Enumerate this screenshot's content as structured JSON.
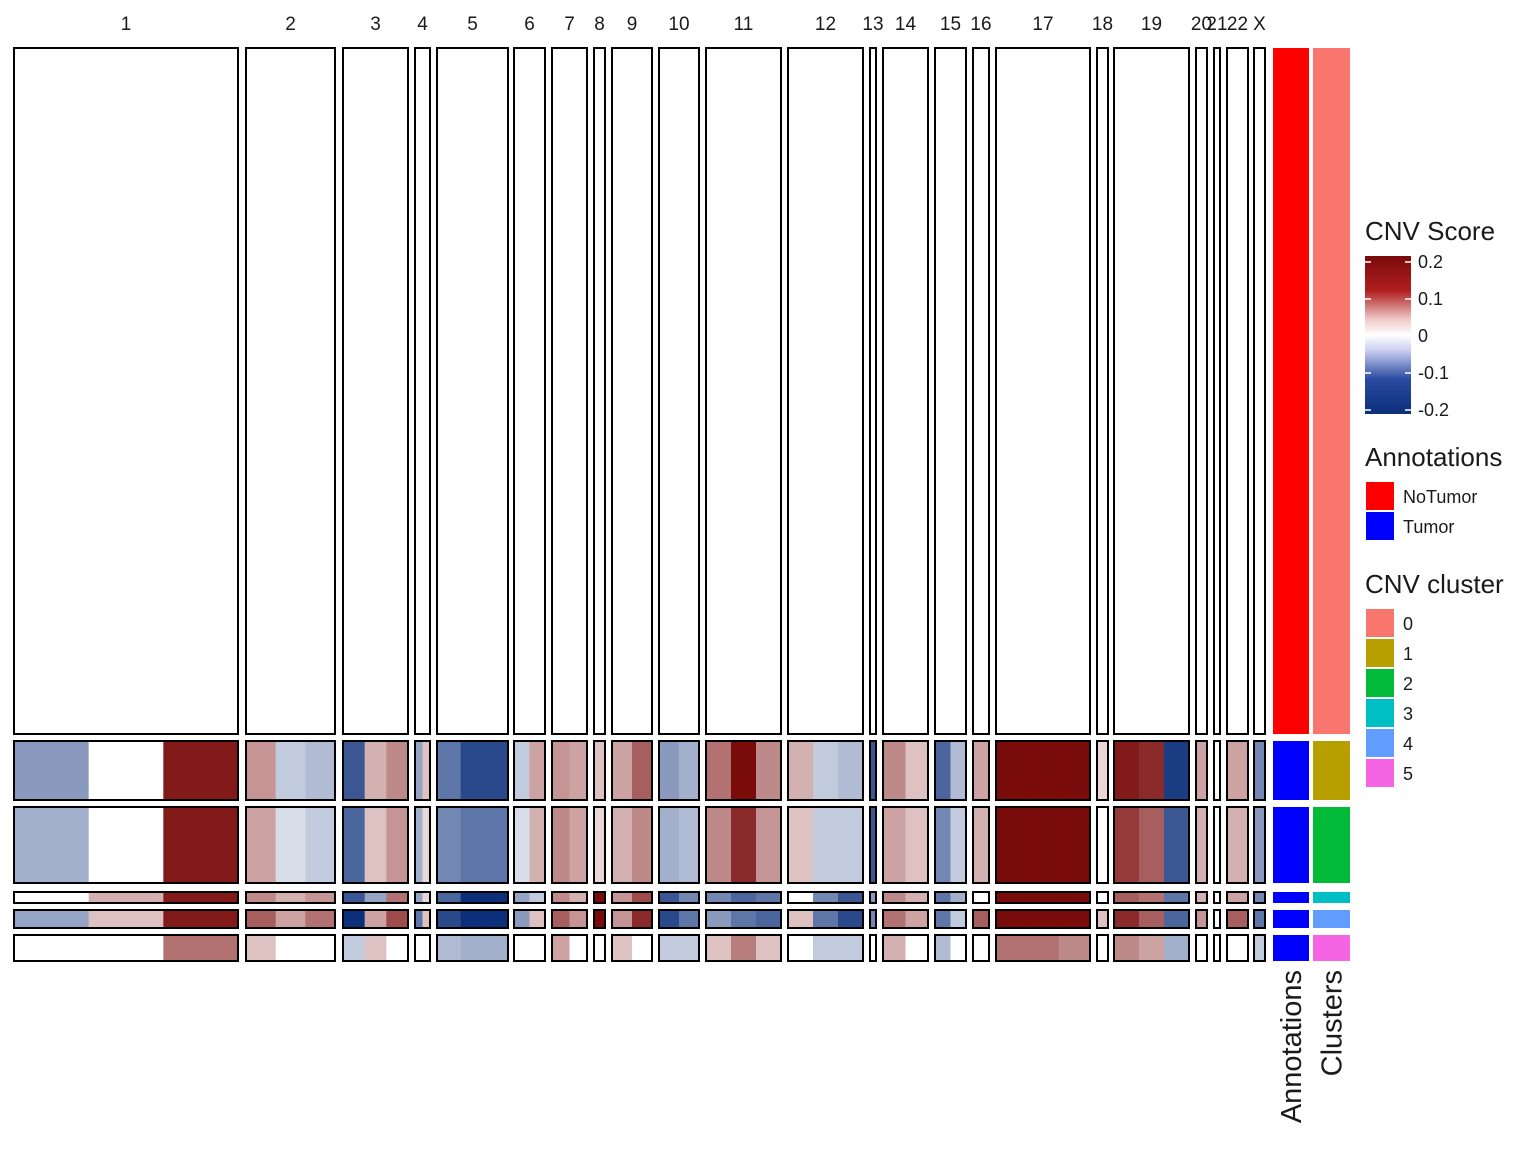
{
  "chart_data": {
    "type": "heatmap",
    "chromosomes": [
      "1",
      "2",
      "3",
      "4",
      "5",
      "6",
      "7",
      "8",
      "9",
      "10",
      "11",
      "12",
      "13",
      "14",
      "15",
      "16",
      "17",
      "18",
      "19",
      "20",
      "21",
      "22",
      "X"
    ],
    "groups": [
      {
        "cluster": "0",
        "annotation": "NoTumor"
      },
      {
        "cluster": "1",
        "annotation": "Tumor"
      },
      {
        "cluster": "2",
        "annotation": "Tumor"
      },
      {
        "cluster": "3",
        "annotation": "Tumor"
      },
      {
        "cluster": "4",
        "annotation": "Tumor"
      },
      {
        "cluster": "5",
        "annotation": "Tumor"
      }
    ],
    "cnv_profiles": {
      "0": [
        [
          0,
          0,
          0
        ],
        [
          0,
          0,
          0
        ],
        [
          0,
          0,
          0
        ],
        [
          0,
          0
        ],
        [
          0,
          0,
          0
        ],
        [
          0,
          0
        ],
        [
          0,
          0
        ],
        [
          0
        ],
        [
          0,
          0
        ],
        [
          0,
          0
        ],
        [
          0,
          0,
          0
        ],
        [
          0,
          0,
          0
        ],
        [
          0
        ],
        [
          0,
          0
        ],
        [
          0,
          0
        ],
        [
          0
        ],
        [
          0,
          0,
          0
        ],
        [
          0
        ],
        [
          0,
          0,
          0
        ],
        [
          0
        ],
        [
          0
        ],
        [
          0
        ],
        [
          0
        ]
      ],
      "1": [
        [
          -0.06,
          0.0,
          0.18
        ],
        [
          0.05,
          -0.02,
          -0.03
        ],
        [
          -0.14,
          0.03,
          0.06
        ],
        [
          -0.05,
          0.02
        ],
        [
          -0.1,
          -0.16,
          -0.16
        ],
        [
          -0.02,
          0.04
        ],
        [
          0.05,
          0.04
        ],
        [
          0.02
        ],
        [
          0.04,
          0.1
        ],
        [
          -0.06,
          -0.04
        ],
        [
          0.08,
          0.2,
          0.06
        ],
        [
          0.03,
          -0.02,
          -0.03
        ],
        [
          -0.14
        ],
        [
          0.06,
          0.02
        ],
        [
          -0.12,
          -0.03
        ],
        [
          0.04
        ],
        [
          0.2,
          0.2,
          0.2
        ],
        [
          0.01
        ],
        [
          0.18,
          0.16,
          -0.18
        ],
        [
          0.04
        ],
        [
          0.0
        ],
        [
          0.04
        ],
        [
          -0.08
        ]
      ],
      "2": [
        [
          -0.04,
          0.0,
          0.18
        ],
        [
          0.04,
          -0.01,
          -0.02
        ],
        [
          -0.12,
          0.02,
          0.05
        ],
        [
          -0.04,
          0.01
        ],
        [
          -0.08,
          -0.1,
          -0.1
        ],
        [
          -0.01,
          0.03
        ],
        [
          0.06,
          0.04
        ],
        [
          0.01
        ],
        [
          0.03,
          0.06
        ],
        [
          -0.04,
          -0.03
        ],
        [
          0.06,
          0.16,
          0.05
        ],
        [
          0.02,
          -0.02,
          -0.02
        ],
        [
          -0.14
        ],
        [
          0.04,
          0.02
        ],
        [
          -0.08,
          -0.02
        ],
        [
          0.03
        ],
        [
          0.2,
          0.2,
          0.2
        ],
        [
          0.0
        ],
        [
          0.14,
          0.1,
          -0.14
        ],
        [
          0.03
        ],
        [
          0.0
        ],
        [
          0.03
        ],
        [
          -0.06
        ]
      ],
      "3": [
        [
          0.0,
          0.03,
          0.18
        ],
        [
          0.06,
          0.03,
          0.05
        ],
        [
          -0.14,
          -0.05,
          0.08
        ],
        [
          -0.05,
          0.01
        ],
        [
          -0.12,
          -0.2,
          -0.22
        ],
        [
          -0.05,
          -0.02
        ],
        [
          0.06,
          0.03
        ],
        [
          0.2
        ],
        [
          0.05,
          0.12
        ],
        [
          -0.14,
          -0.08
        ],
        [
          -0.08,
          -0.12,
          -0.1
        ],
        [
          0.0,
          -0.08,
          -0.14
        ],
        [
          -0.06
        ],
        [
          0.06,
          0.03
        ],
        [
          -0.1,
          -0.04
        ],
        [
          0.0
        ],
        [
          0.2,
          0.2,
          0.2
        ],
        [
          0.0
        ],
        [
          0.1,
          0.08,
          -0.1
        ],
        [
          0.03
        ],
        [
          0.0
        ],
        [
          0.04
        ],
        [
          -0.08
        ]
      ],
      "4": [
        [
          -0.05,
          0.02,
          0.18
        ],
        [
          0.1,
          0.04,
          0.08
        ],
        [
          -0.2,
          0.04,
          0.12
        ],
        [
          -0.1,
          0.02
        ],
        [
          -0.16,
          -0.2,
          -0.22
        ],
        [
          -0.06,
          0.02
        ],
        [
          0.1,
          0.05
        ],
        [
          0.2
        ],
        [
          0.05,
          0.16
        ],
        [
          -0.16,
          -0.1
        ],
        [
          -0.06,
          -0.1,
          -0.12
        ],
        [
          0.02,
          -0.1,
          -0.16
        ],
        [
          -0.08
        ],
        [
          0.08,
          0.04
        ],
        [
          -0.1,
          -0.02
        ],
        [
          0.1
        ],
        [
          0.2,
          0.2,
          0.2
        ],
        [
          0.02
        ],
        [
          0.16,
          0.1,
          -0.12
        ],
        [
          0.05
        ],
        [
          0.0
        ],
        [
          0.1
        ],
        [
          -0.1
        ]
      ],
      "5": [
        [
          0.0,
          0.0,
          0.08
        ],
        [
          0.02,
          0.0,
          0.0
        ],
        [
          -0.02,
          0.02,
          0.0
        ],
        [
          0.0,
          0.0
        ],
        [
          -0.03,
          -0.04,
          -0.04
        ],
        [
          0.0,
          0.0
        ],
        [
          0.04,
          0.0
        ],
        [
          0.0
        ],
        [
          0.02,
          0.0
        ],
        [
          -0.02,
          -0.02
        ],
        [
          0.02,
          0.07,
          0.02
        ],
        [
          0.0,
          -0.02,
          -0.02
        ],
        [
          0.0
        ],
        [
          0.03,
          0.0
        ],
        [
          -0.03,
          0.0
        ],
        [
          0.0
        ],
        [
          0.08,
          0.08,
          0.06
        ],
        [
          0.0
        ],
        [
          0.06,
          0.04,
          -0.04
        ],
        [
          0.0
        ],
        [
          0.0
        ],
        [
          0.0
        ],
        [
          -0.02
        ]
      ]
    },
    "legend_title": "CNV Score",
    "legend_ticks": [
      0.2,
      0.1,
      0,
      -0.1,
      -0.2
    ],
    "legend_tick_labels": [
      "0.2",
      "0.1",
      "0",
      "-0.1",
      "-0.2"
    ],
    "color_scale": {
      "min": -0.2,
      "max": 0.2,
      "low": "#0b2f7a",
      "mid": "#ffffff",
      "high": "#7a0b0b"
    },
    "annotations_legend": {
      "title": "Annotations",
      "items": [
        {
          "label": "NoTumor",
          "color": "#ff0000"
        },
        {
          "label": "Tumor",
          "color": "#0000ff"
        }
      ]
    },
    "cluster_legend": {
      "title": "CNV cluster",
      "items": [
        {
          "label": "0",
          "color": "#f8766d"
        },
        {
          "label": "1",
          "color": "#b79f00"
        },
        {
          "label": "2",
          "color": "#00ba38"
        },
        {
          "label": "3",
          "color": "#00bfc4"
        },
        {
          "label": "4",
          "color": "#619cff"
        },
        {
          "label": "5",
          "color": "#f564e3"
        }
      ]
    },
    "bar_labels": [
      "Annotations",
      "Clusters"
    ]
  }
}
